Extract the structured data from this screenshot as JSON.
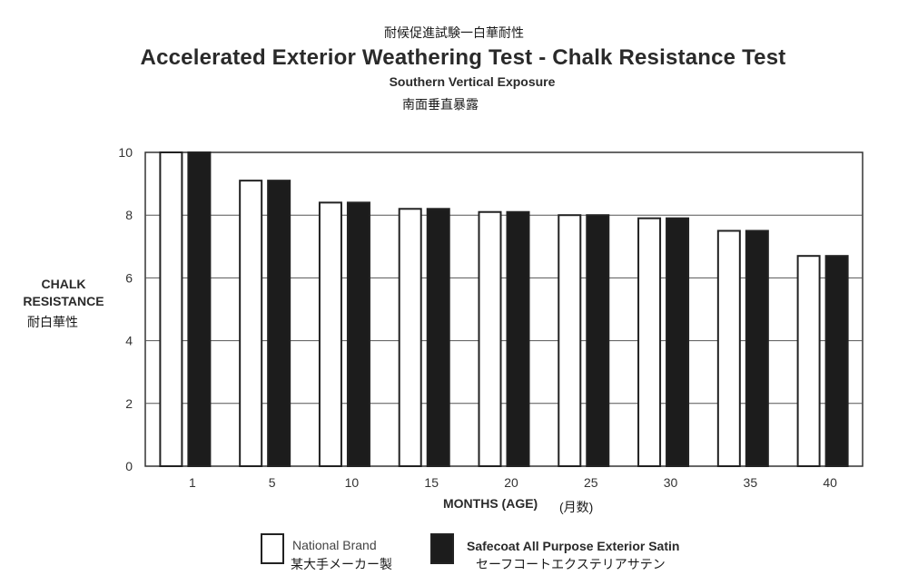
{
  "header": {
    "title_jp": "耐候促進試験一白華耐性",
    "title": "Accelerated Exterior Weathering Test - Chalk Resistance Test",
    "subtitle": "Southern Vertical Exposure",
    "subtitle_jp": "南面垂直暴露"
  },
  "axes": {
    "ylabel_line1": "CHALK",
    "ylabel_line2": "RESISTANCE",
    "ylabel_jp": "耐白華性",
    "xlabel": "MONTHS (AGE)",
    "xlabel_jp": "(月数)"
  },
  "legend": {
    "national_brand": "National Brand",
    "national_brand_jp": "某大手メーカー製",
    "safecoat": "Safecoat All Purpose Exterior Satin",
    "safecoat_jp": "セーフコートエクステリアサテン"
  },
  "colors": {
    "national_brand": "#ffffff",
    "safecoat": "#1c1c1c",
    "gridline": "#555555"
  },
  "chart_data": {
    "type": "bar",
    "categories": [
      "1",
      "5",
      "10",
      "15",
      "20",
      "25",
      "30",
      "35",
      "40"
    ],
    "series": [
      {
        "name": "National Brand",
        "values": [
          10,
          9.1,
          8.4,
          8.2,
          8.1,
          8.0,
          7.9,
          7.5,
          6.7
        ]
      },
      {
        "name": "Safecoat All Purpose Exterior Satin",
        "values": [
          10,
          9.1,
          8.4,
          8.2,
          8.1,
          8.0,
          7.9,
          7.5,
          6.7
        ]
      }
    ],
    "yticks": [
      "0",
      "2",
      "4",
      "6",
      "8",
      "10"
    ],
    "ylim": [
      0,
      10
    ],
    "grid": true
  }
}
